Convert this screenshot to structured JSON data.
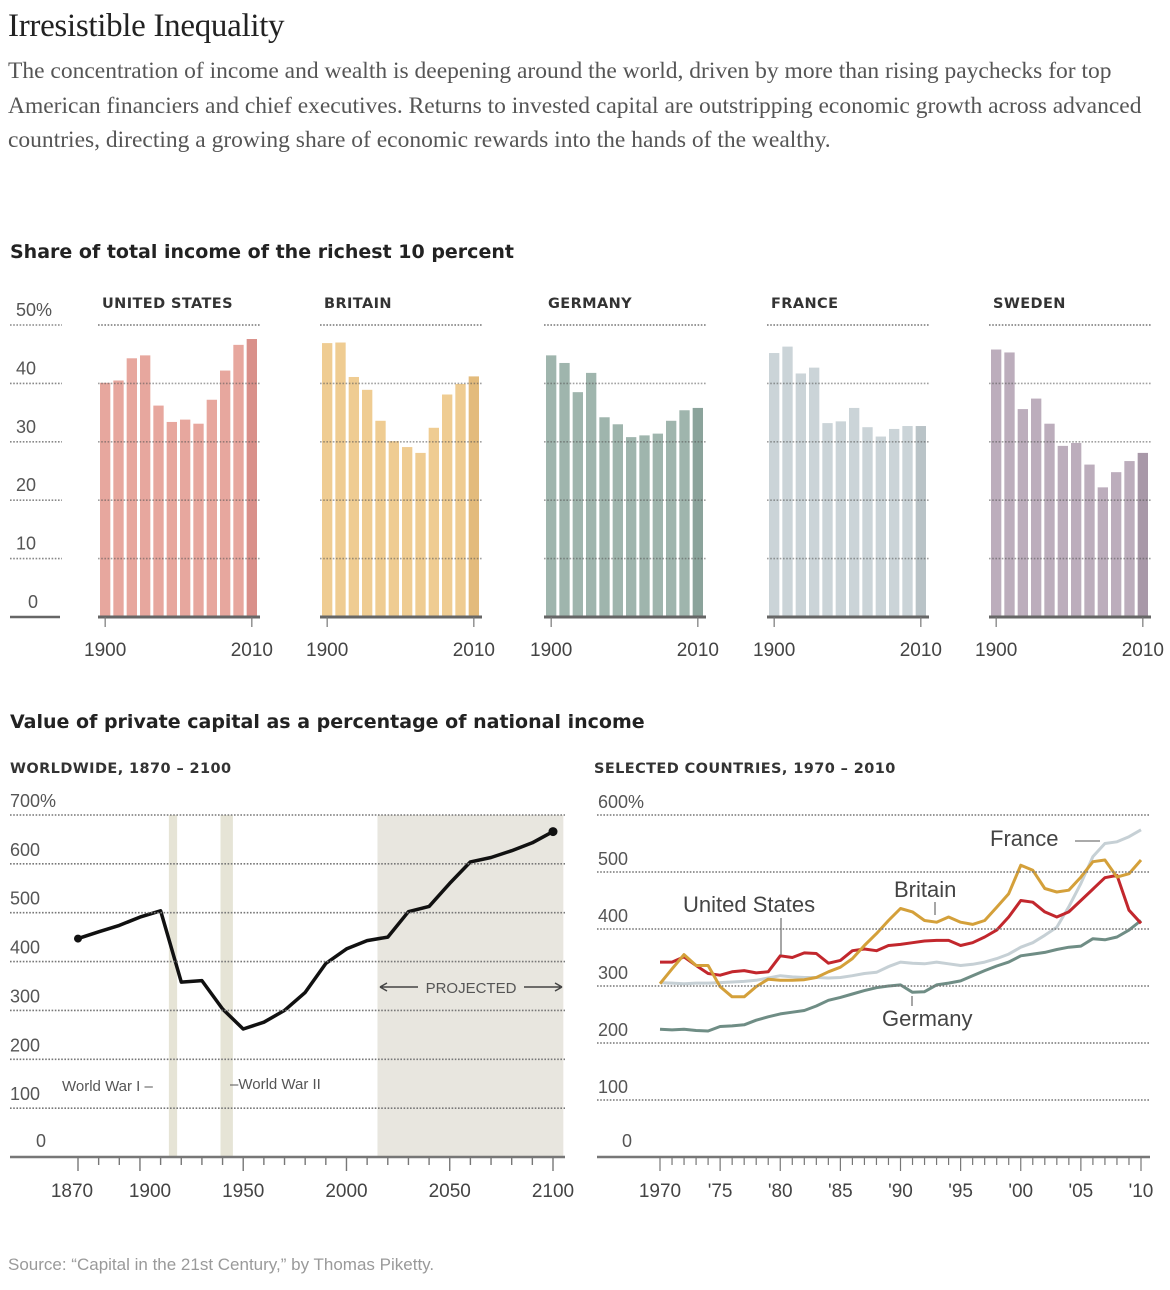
{
  "header": {
    "title": "Irresistible Inequality",
    "intro": "The concentration of income and wealth is deepening around the world, driven by more than rising paychecks for top American financiers and chief executives. Returns to invested capital are outstripping economic growth across advanced countries, directing a growing share of economic rewards into the hands of the wealthy."
  },
  "source": "Source: “Capital in the 21st Century,” by Thomas Piketty.",
  "chart_data": [
    {
      "type": "bar",
      "title": "Share of total income of the richest 10 percent",
      "y_ticks": [
        {
          "value": 50,
          "label": "50%"
        },
        {
          "value": 40,
          "label": "40"
        },
        {
          "value": 30,
          "label": "30"
        },
        {
          "value": 20,
          "label": "20"
        },
        {
          "value": 10,
          "label": "10"
        },
        {
          "value": 0,
          "label": "0"
        }
      ],
      "ylim": [
        0,
        50
      ],
      "x": [
        1900,
        1910,
        1920,
        1930,
        1940,
        1950,
        1960,
        1970,
        1980,
        1990,
        2000,
        2010
      ],
      "x_tick_labels": [
        "1900",
        "2010"
      ],
      "grid": true,
      "panels": [
        {
          "name": "UNITED STATES",
          "color": "#e7a79e",
          "last_color": "#d9908a",
          "values": [
            40.1,
            40.5,
            44.3,
            44.8,
            36.2,
            33.4,
            33.8,
            33.1,
            37.2,
            42.2,
            46.6,
            47.6
          ]
        },
        {
          "name": "BRITAIN",
          "color": "#efcc92",
          "last_color": "#e3bb7c",
          "values": [
            46.9,
            47.0,
            41.1,
            38.9,
            33.6,
            30.1,
            29.1,
            28.1,
            32.4,
            38.1,
            39.9,
            41.2
          ]
        },
        {
          "name": "GERMANY",
          "color": "#9fb5ad",
          "last_color": "#8ba39b",
          "values": [
            44.8,
            43.5,
            38.5,
            41.8,
            34.2,
            33.0,
            30.8,
            31.1,
            31.4,
            33.6,
            35.4,
            35.8
          ]
        },
        {
          "name": "FRANCE",
          "color": "#cbd4d8",
          "last_color": "#b9c3c7",
          "values": [
            45.2,
            46.3,
            41.7,
            42.7,
            33.2,
            33.5,
            35.8,
            32.5,
            30.9,
            32.2,
            32.7,
            32.7
          ]
        },
        {
          "name": "SWEDEN",
          "color": "#bcadbc",
          "last_color": "#a898a8",
          "values": [
            45.8,
            45.3,
            35.6,
            37.4,
            33.1,
            29.3,
            29.8,
            26.1,
            22.2,
            24.8,
            26.7,
            28.1
          ]
        }
      ]
    },
    {
      "type": "line",
      "section_title": "Value of private capital as a percentage of national income",
      "title": "WORLDWIDE, 1870 – 2100",
      "ylim": [
        0,
        700
      ],
      "y_ticks": [
        {
          "value": 700,
          "label": "700%"
        },
        {
          "value": 600,
          "label": "600"
        },
        {
          "value": 500,
          "label": "500"
        },
        {
          "value": 400,
          "label": "400"
        },
        {
          "value": 300,
          "label": "300"
        },
        {
          "value": 200,
          "label": "200"
        },
        {
          "value": 100,
          "label": "100"
        },
        {
          "value": 0,
          "label": "0"
        }
      ],
      "x_ticks": [
        "1870",
        "1900",
        "1950",
        "2000",
        "2050",
        "2100"
      ],
      "xlim": [
        1870,
        2100
      ],
      "series": [
        {
          "name": "Worldwide",
          "color": "#111111",
          "x": [
            1870,
            1880,
            1890,
            1900,
            1910,
            1920,
            1930,
            1940,
            1950,
            1960,
            1970,
            1980,
            1990,
            2000,
            2010,
            2020,
            2030,
            2040,
            2050,
            2060,
            2070,
            2080,
            2090,
            2100
          ],
          "values": [
            447,
            461,
            474,
            491,
            504,
            358,
            361,
            303,
            262,
            276,
            300,
            337,
            396,
            426,
            443,
            450,
            502,
            513,
            560,
            604,
            613,
            627,
            643,
            666
          ]
        }
      ],
      "shaded": [
        {
          "label": "World War I",
          "from": 1914,
          "to": 1918
        },
        {
          "label": "World War II",
          "from": 1939,
          "to": 1945
        },
        {
          "label": "PROJECTED",
          "from": 2015,
          "to": 2105
        }
      ],
      "annotations": {
        "ww1": "World War I –",
        "ww2": "–World War II",
        "projected": "PROJECTED"
      }
    },
    {
      "type": "line",
      "title": "SELECTED COUNTRIES, 1970 – 2010",
      "ylim": [
        0,
        600
      ],
      "xlim": [
        1970,
        2010
      ],
      "y_ticks": [
        {
          "value": 600,
          "label": "600%"
        },
        {
          "value": 500,
          "label": "500"
        },
        {
          "value": 400,
          "label": "400"
        },
        {
          "value": 300,
          "label": "300"
        },
        {
          "value": 200,
          "label": "200"
        },
        {
          "value": 100,
          "label": "100"
        },
        {
          "value": 0,
          "label": "0"
        }
      ],
      "x_ticks": [
        {
          "year": 1970,
          "label": "1970"
        },
        {
          "year": 1975,
          "label": "'75"
        },
        {
          "year": 1980,
          "label": "'80"
        },
        {
          "year": 1985,
          "label": "'85"
        },
        {
          "year": 1990,
          "label": "'90"
        },
        {
          "year": 1995,
          "label": "'95"
        },
        {
          "year": 2000,
          "label": "'00"
        },
        {
          "year": 2005,
          "label": "'05"
        },
        {
          "year": 2010,
          "label": "'10"
        }
      ],
      "series": [
        {
          "name": "Germany",
          "color": "#6f8d85",
          "values": [
            224,
            223,
            224,
            222,
            221,
            229,
            230,
            232,
            240,
            246,
            251,
            254,
            257,
            265,
            275,
            280,
            286,
            292,
            297,
            300,
            302,
            289,
            290,
            302,
            305,
            309,
            318,
            327,
            335,
            342,
            353,
            356,
            359,
            364,
            368,
            370,
            383,
            381,
            386,
            398,
            415
          ]
        },
        {
          "name": "France",
          "color": "#c6d0d5",
          "values": [
            306,
            305,
            304,
            305,
            305,
            306,
            307,
            308,
            310,
            314,
            318,
            316,
            315,
            315,
            314,
            315,
            318,
            322,
            324,
            334,
            342,
            340,
            339,
            342,
            339,
            336,
            338,
            342,
            348,
            356,
            368,
            376,
            389,
            403,
            439,
            480,
            527,
            550,
            553,
            562,
            574
          ]
        },
        {
          "name": "United States",
          "color": "#c2272d",
          "values": [
            342,
            342,
            351,
            336,
            322,
            319,
            325,
            327,
            323,
            325,
            353,
            350,
            358,
            357,
            340,
            345,
            362,
            365,
            362,
            371,
            373,
            376,
            379,
            380,
            380,
            371,
            376,
            386,
            398,
            421,
            450,
            447,
            430,
            421,
            430,
            450,
            470,
            490,
            494,
            433,
            410
          ]
        },
        {
          "name": "Britain",
          "color": "#d4a03a",
          "values": [
            304,
            330,
            355,
            336,
            336,
            299,
            281,
            281,
            299,
            312,
            310,
            310,
            311,
            315,
            325,
            333,
            348,
            371,
            392,
            415,
            436,
            430,
            415,
            412,
            421,
            412,
            408,
            415,
            438,
            462,
            512,
            503,
            471,
            465,
            468,
            491,
            518,
            521,
            491,
            497,
            521
          ]
        }
      ]
    }
  ]
}
